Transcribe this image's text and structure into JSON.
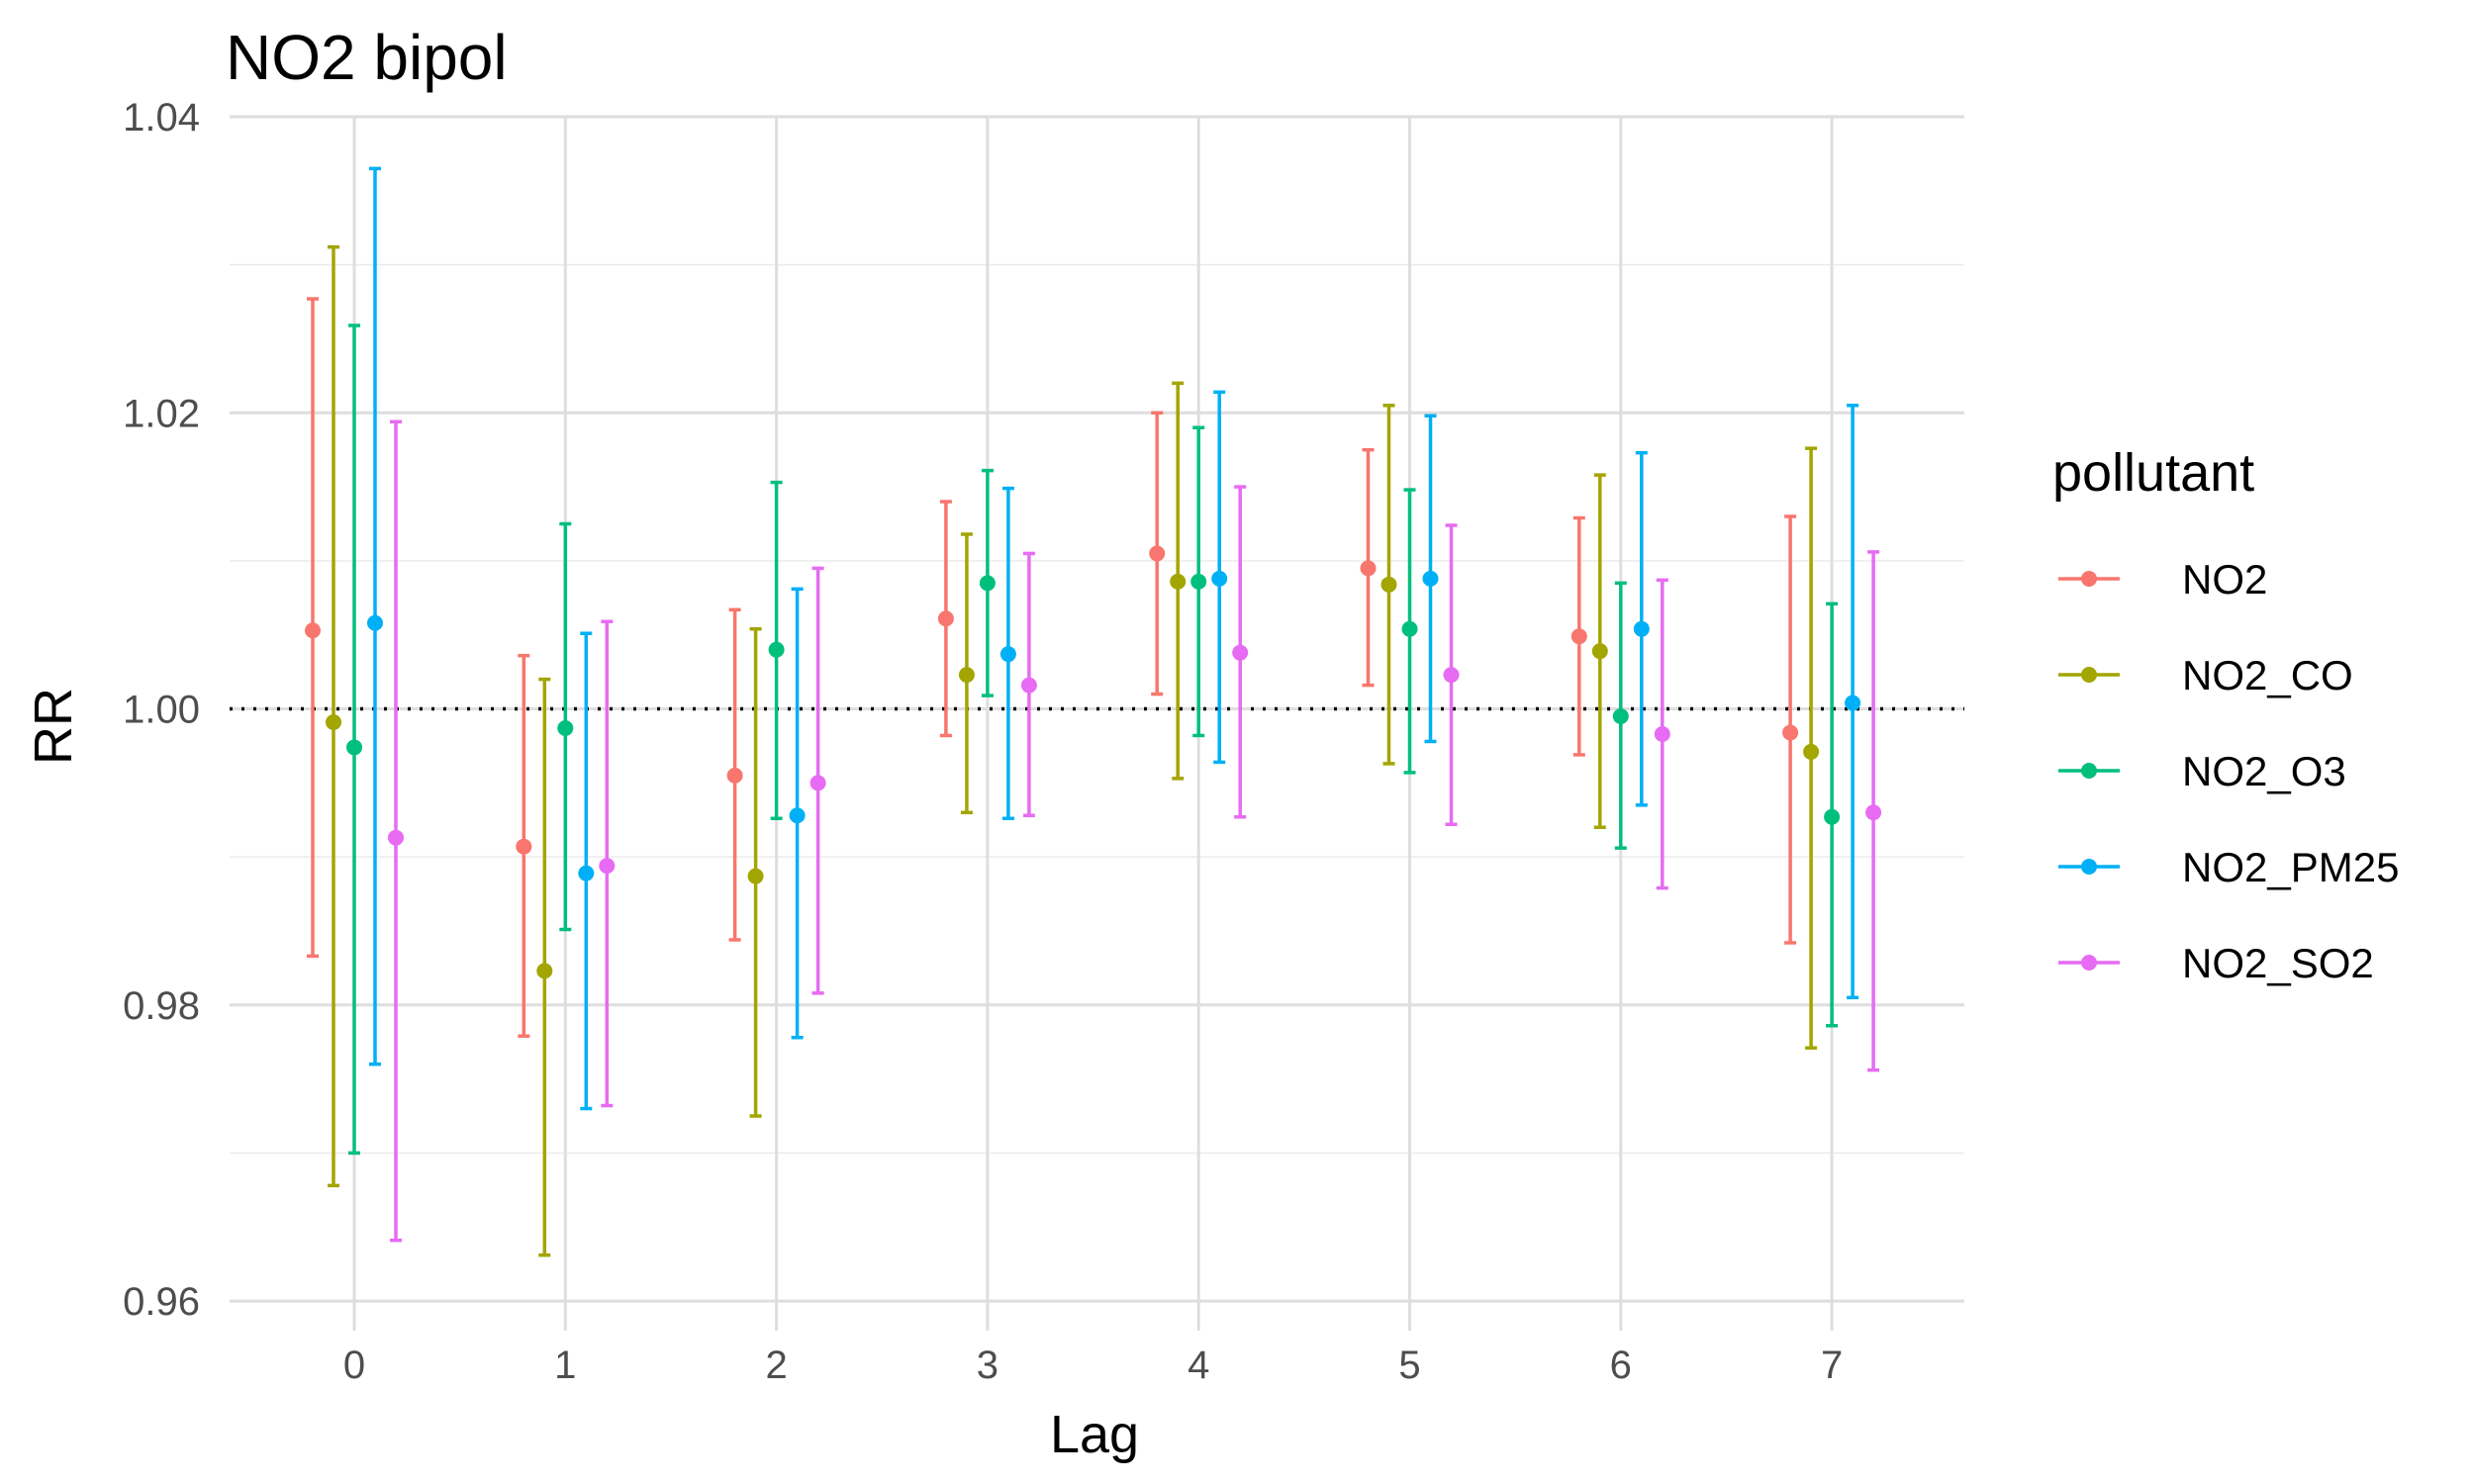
{
  "chart_data": {
    "type": "scatter",
    "title": "NO2 bipol",
    "xlabel": "Lag",
    "ylabel": "RR",
    "categories": [
      "0",
      "1",
      "2",
      "3",
      "4",
      "5",
      "6",
      "7"
    ],
    "ylim": [
      0.958,
      1.04
    ],
    "yticks": [
      0.96,
      0.98,
      1.0,
      1.02,
      1.04
    ],
    "ytick_labels": [
      "0.96",
      "0.98",
      "1.00",
      "1.02",
      "1.04"
    ],
    "reference_line": 1.0,
    "grid": true,
    "legend": {
      "title": "pollutant",
      "position": "right"
    },
    "series": [
      {
        "name": "NO2",
        "color": "#F8766D",
        "values": [
          1.0053,
          0.9907,
          0.9955,
          1.0061,
          1.0105,
          1.0095,
          1.0049,
          0.9984
        ],
        "lower": [
          0.9833,
          0.9779,
          0.9844,
          0.9982,
          1.001,
          1.0016,
          0.9969,
          0.9842
        ],
        "upper": [
          1.0277,
          1.0036,
          1.0067,
          1.014,
          1.02,
          1.0175,
          1.0129,
          1.013
        ]
      },
      {
        "name": "NO2_CO",
        "color": "#A3A500",
        "values": [
          0.9991,
          0.9823,
          0.9887,
          1.0023,
          1.0086,
          1.0084,
          1.0039,
          0.9971
        ],
        "lower": [
          0.9678,
          0.9631,
          0.9725,
          0.993,
          0.9953,
          0.9963,
          0.992,
          0.9771
        ],
        "upper": [
          1.0312,
          1.002,
          1.0054,
          1.0118,
          1.022,
          1.0205,
          1.0158,
          1.0176
        ]
      },
      {
        "name": "NO2_O3",
        "color": "#00BF7D",
        "values": [
          0.9974,
          0.9987,
          1.004,
          1.0085,
          1.0086,
          1.0054,
          0.9995,
          0.9927
        ],
        "lower": [
          0.97,
          0.9851,
          0.9926,
          1.0009,
          0.9982,
          0.9957,
          0.9906,
          0.9786
        ],
        "upper": [
          1.0259,
          1.0125,
          1.0153,
          1.0161,
          1.019,
          1.0148,
          1.0085,
          1.0071
        ]
      },
      {
        "name": "NO2_PM25",
        "color": "#00B0F6",
        "values": [
          1.0058,
          0.9889,
          0.9928,
          1.0037,
          1.0088,
          1.0088,
          1.0054,
          1.0004
        ],
        "lower": [
          0.976,
          0.973,
          0.9778,
          0.9926,
          0.9964,
          0.9978,
          0.9935,
          0.9805
        ],
        "upper": [
          1.0365,
          1.0051,
          1.0081,
          1.0149,
          1.0214,
          1.0198,
          1.0173,
          1.0205
        ]
      },
      {
        "name": "NO2_SO2",
        "color": "#E76BF3",
        "values": [
          0.9913,
          0.9894,
          0.995,
          1.0016,
          1.0038,
          1.0023,
          0.9983,
          0.993
        ],
        "lower": [
          0.9641,
          0.9732,
          0.9808,
          0.9928,
          0.9927,
          0.9922,
          0.9879,
          0.9756
        ],
        "upper": [
          1.0194,
          1.0059,
          1.0095,
          1.0105,
          1.015,
          1.0124,
          1.0087,
          1.0106
        ]
      }
    ]
  }
}
